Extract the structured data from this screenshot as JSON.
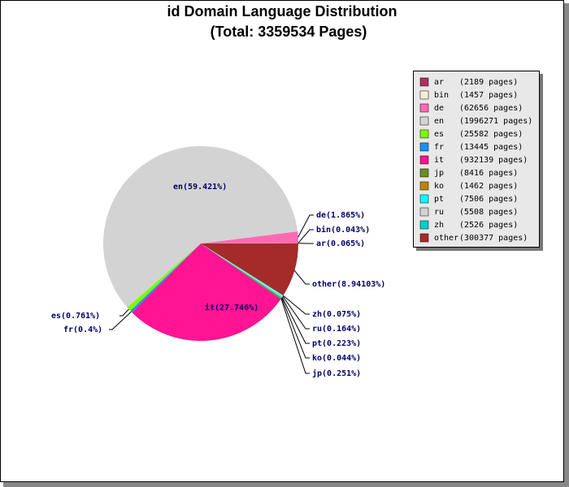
{
  "chart_data": {
    "type": "pie",
    "title": "id Domain Language Distribution",
    "subtitle": "(Total: 3359534 Pages)",
    "categories": [
      "ar",
      "bin",
      "de",
      "en",
      "es",
      "fr",
      "it",
      "jp",
      "ko",
      "pt",
      "ru",
      "zh",
      "other"
    ],
    "values": [
      0.065,
      0.043,
      1.865,
      59.421,
      0.761,
      0.4,
      27.746,
      0.251,
      0.044,
      0.223,
      0.164,
      0.075,
      8.94103
    ],
    "value_labels": [
      "ar(0.065%)",
      "bin(0.043%)",
      "de(1.865%)",
      "en(59.421%)",
      "es(0.761%)",
      "fr(0.4%)",
      "it(27.746%)",
      "jp(0.251%)",
      "ko(0.044%)",
      "pt(0.223%)",
      "ru(0.164%)",
      "zh(0.075%)",
      "other(8.94103%)"
    ],
    "legend_labels": [
      "(2189 pages)",
      "(1457 pages)",
      "(62656 pages)",
      "(1996271 pages)",
      "(25582 pages)",
      "(13445 pages)",
      "(932139 pages)",
      "(8416 pages)",
      "(1462 pages)",
      "(7506 pages)",
      "(5508 pages)",
      "(2526 pages)",
      "(300377 pages)"
    ],
    "colors": [
      "#b03060",
      "#faebd7",
      "#ff69b4",
      "#d3d3d3",
      "#7cfc00",
      "#1e90ff",
      "#ff1493",
      "#6b8e23",
      "#b8860b",
      "#00ffff",
      "#d3d3d3",
      "#00ced1",
      "#a52a2a"
    ]
  }
}
